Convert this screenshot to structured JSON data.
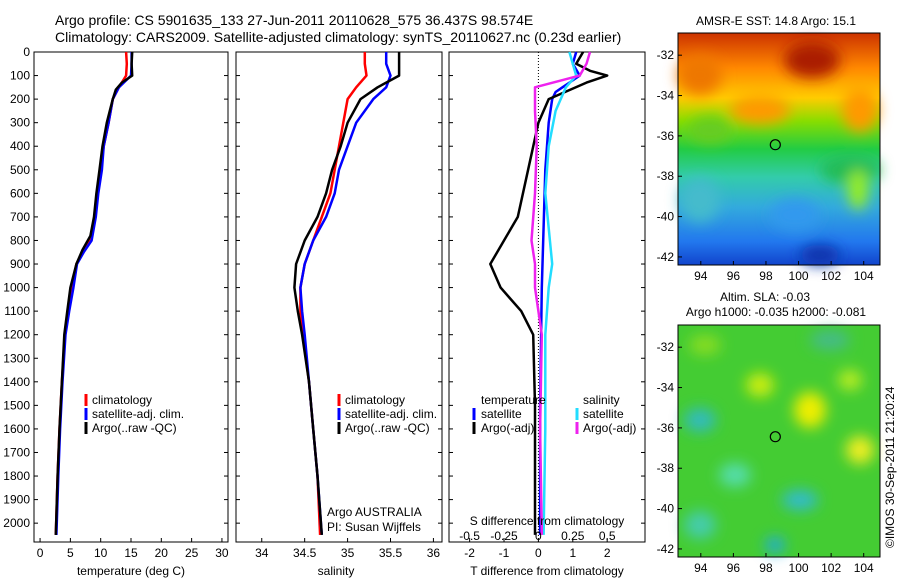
{
  "header": {
    "title": "Argo profile: CS 5901635_133 27-Jun-2011 20110628_575 36.437S 98.574E",
    "subtitle": "Climatology: CARS2009. Satellite-adjusted climatology: synTS_20110627.nc (0.23d earlier)"
  },
  "colors": {
    "red": "#ff0000",
    "blue": "#0000ff",
    "black": "#000000",
    "cyan": "#22ddff",
    "magenta": "#ee22ee"
  },
  "legend": {
    "climatology": "climatology",
    "satellite_adj": "satellite-adj. clim.",
    "argo": "Argo(..raw -QC)"
  },
  "diff_legend": {
    "temperature": "temperature",
    "salinity": "salinity",
    "satellite": "satellite",
    "argo_adj": "Argo(-adj)"
  },
  "float_info": {
    "line1": "Argo AUSTRALIA",
    "line2": "PI: Susan Wijffels"
  },
  "maps": {
    "sst_title": "AMSR-E SST: 14.8 Argo: 15.1",
    "sla_title1": "Altim. SLA: -0.03",
    "sla_title2": "Argo h1000: -0.035 h2000: -0.081",
    "xticks": [
      "94",
      "96",
      "98",
      "100",
      "102",
      "104"
    ],
    "yticks": [
      "-32",
      "-34",
      "-36",
      "-38",
      "-40",
      "-42"
    ],
    "marker_lon": 98.574,
    "marker_lat": -36.437,
    "credit": "©IMOS 30-Sep-2011 21:20:24"
  },
  "chart_data": [
    {
      "type": "line",
      "name": "temperature-panel",
      "xlabel": "temperature (deg C)",
      "ylabel": "",
      "xlim": [
        -1,
        31
      ],
      "ylim": [
        2080,
        0
      ],
      "xticks": [
        0,
        5,
        10,
        15,
        20,
        25,
        30
      ],
      "yticks": [
        0,
        100,
        200,
        300,
        400,
        500,
        600,
        700,
        800,
        900,
        1000,
        1100,
        1200,
        1300,
        1400,
        1500,
        1600,
        1700,
        1800,
        1900,
        2000
      ],
      "series": [
        {
          "name": "climatology",
          "color": "red",
          "points": [
            [
              14.2,
              0
            ],
            [
              14.3,
              50
            ],
            [
              14.2,
              100
            ],
            [
              13,
              150
            ],
            [
              12,
              200
            ],
            [
              11.3,
              300
            ],
            [
              10.5,
              400
            ],
            [
              10,
              500
            ],
            [
              9.4,
              600
            ],
            [
              9,
              700
            ],
            [
              8.3,
              800
            ],
            [
              7,
              850
            ],
            [
              6,
              900
            ],
            [
              5.3,
              1000
            ],
            [
              4.6,
              1100
            ],
            [
              4.1,
              1200
            ],
            [
              3.6,
              1400
            ],
            [
              3.2,
              1600
            ],
            [
              2.9,
              1800
            ],
            [
              2.6,
              2050
            ]
          ]
        },
        {
          "name": "satellite-adj. clim.",
          "color": "blue",
          "points": [
            [
              15.1,
              0
            ],
            [
              15.1,
              50
            ],
            [
              15,
              100
            ],
            [
              13,
              150
            ],
            [
              12,
              200
            ],
            [
              11.3,
              300
            ],
            [
              10.5,
              400
            ],
            [
              10.2,
              500
            ],
            [
              9.6,
              600
            ],
            [
              9.2,
              700
            ],
            [
              8.5,
              800
            ],
            [
              7.2,
              850
            ],
            [
              6.1,
              900
            ],
            [
              5.5,
              1000
            ],
            [
              4.8,
              1100
            ],
            [
              4.2,
              1200
            ],
            [
              3.7,
              1400
            ],
            [
              3.3,
              1600
            ],
            [
              3,
              1800
            ],
            [
              2.7,
              2050
            ]
          ]
        },
        {
          "name": "Argo(..raw -QC)",
          "color": "black",
          "points": [
            [
              15.2,
              0
            ],
            [
              15.1,
              50
            ],
            [
              15.2,
              100
            ],
            [
              13.5,
              130
            ],
            [
              12.5,
              160
            ],
            [
              12,
              200
            ],
            [
              11,
              300
            ],
            [
              10.3,
              400
            ],
            [
              9.8,
              500
            ],
            [
              9.3,
              600
            ],
            [
              8.9,
              700
            ],
            [
              8.3,
              780
            ],
            [
              7,
              840
            ],
            [
              6,
              900
            ],
            [
              5,
              1000
            ],
            [
              4.5,
              1100
            ],
            [
              4,
              1200
            ],
            [
              3.6,
              1400
            ],
            [
              3.2,
              1600
            ],
            [
              2.9,
              1800
            ],
            [
              2.6,
              2050
            ]
          ]
        }
      ]
    },
    {
      "type": "line",
      "name": "salinity-panel",
      "xlabel": "salinity",
      "ylabel": "",
      "xlim": [
        33.7,
        36.1
      ],
      "ylim": [
        2080,
        0
      ],
      "xticks": [
        34,
        34.5,
        35,
        35.5,
        36
      ],
      "series": [
        {
          "name": "climatology",
          "color": "red",
          "points": [
            [
              35.2,
              0
            ],
            [
              35.2,
              50
            ],
            [
              35.22,
              100
            ],
            [
              35.1,
              150
            ],
            [
              35,
              200
            ],
            [
              34.95,
              300
            ],
            [
              34.9,
              400
            ],
            [
              34.85,
              500
            ],
            [
              34.8,
              600
            ],
            [
              34.7,
              700
            ],
            [
              34.6,
              800
            ],
            [
              34.5,
              900
            ],
            [
              34.45,
              1000
            ],
            [
              34.45,
              1100
            ],
            [
              34.48,
              1200
            ],
            [
              34.55,
              1400
            ],
            [
              34.6,
              1600
            ],
            [
              34.65,
              1800
            ],
            [
              34.68,
              2050
            ]
          ]
        },
        {
          "name": "satellite-adj. clim.",
          "color": "blue",
          "points": [
            [
              35.45,
              0
            ],
            [
              35.45,
              50
            ],
            [
              35.5,
              100
            ],
            [
              35.45,
              150
            ],
            [
              35.3,
              200
            ],
            [
              35.1,
              300
            ],
            [
              35,
              400
            ],
            [
              34.9,
              500
            ],
            [
              34.85,
              600
            ],
            [
              34.75,
              700
            ],
            [
              34.6,
              800
            ],
            [
              34.5,
              900
            ],
            [
              34.45,
              1000
            ],
            [
              34.47,
              1100
            ],
            [
              34.5,
              1200
            ],
            [
              34.55,
              1400
            ],
            [
              34.6,
              1600
            ],
            [
              34.65,
              1800
            ],
            [
              34.7,
              2050
            ]
          ]
        },
        {
          "name": "Argo(..raw -QC)",
          "color": "black",
          "points": [
            [
              35.6,
              0
            ],
            [
              35.6,
              50
            ],
            [
              35.6,
              100
            ],
            [
              35.35,
              150
            ],
            [
              35.15,
              200
            ],
            [
              35,
              300
            ],
            [
              34.92,
              400
            ],
            [
              34.82,
              500
            ],
            [
              34.75,
              600
            ],
            [
              34.65,
              700
            ],
            [
              34.5,
              800
            ],
            [
              34.4,
              900
            ],
            [
              34.38,
              1000
            ],
            [
              34.42,
              1100
            ],
            [
              34.47,
              1200
            ],
            [
              34.55,
              1400
            ],
            [
              34.6,
              1600
            ],
            [
              34.65,
              1800
            ],
            [
              34.7,
              2050
            ]
          ]
        }
      ]
    },
    {
      "type": "line",
      "name": "difference-panel",
      "xlabel": "T difference from climatology",
      "xlabel_top": "S difference from climatology",
      "xlim": [
        -2.6,
        3.1
      ],
      "ylim": [
        2080,
        0
      ],
      "xticks": [
        -2,
        -1,
        0,
        1,
        2
      ],
      "xticks_s": [
        "-0.5",
        "-0.25",
        "0",
        "0.25",
        "0.5"
      ],
      "series": [
        {
          "name": "temperature satellite",
          "color": "blue",
          "points": [
            [
              1.1,
              0
            ],
            [
              1.0,
              50
            ],
            [
              1.2,
              100
            ],
            [
              0.9,
              130
            ],
            [
              0.7,
              150
            ],
            [
              0.5,
              170
            ],
            [
              0.4,
              200
            ],
            [
              0.3,
              300
            ],
            [
              0.2,
              500
            ],
            [
              0.1,
              1000
            ],
            [
              0.05,
              1500
            ],
            [
              0.05,
              2050
            ]
          ]
        },
        {
          "name": "temperature Argo(-adj)",
          "color": "black",
          "points": [
            [
              1.3,
              0
            ],
            [
              1.1,
              50
            ],
            [
              1.5,
              80
            ],
            [
              2.0,
              100
            ],
            [
              1.4,
              130
            ],
            [
              0.3,
              200
            ],
            [
              0,
              300
            ],
            [
              -0.3,
              500
            ],
            [
              -0.6,
              700
            ],
            [
              -1,
              800
            ],
            [
              -1.4,
              900
            ],
            [
              -1.1,
              1000
            ],
            [
              -0.5,
              1100
            ],
            [
              -0.15,
              1200
            ],
            [
              -0.1,
              1500
            ],
            [
              -0.1,
              2050
            ]
          ]
        },
        {
          "name": "salinity satellite",
          "color": "cyan",
          "points": [
            [
              0.9,
              0
            ],
            [
              1.0,
              50
            ],
            [
              1.1,
              100
            ],
            [
              0.8,
              150
            ],
            [
              0.5,
              250
            ],
            [
              0.3,
              400
            ],
            [
              0.2,
              600
            ],
            [
              0.4,
              900
            ],
            [
              0.3,
              1000
            ],
            [
              0.2,
              1200
            ],
            [
              0.2,
              1600
            ],
            [
              0.15,
              2050
            ]
          ]
        },
        {
          "name": "salinity Argo(-adj)",
          "color": "magenta",
          "points": [
            [
              1.5,
              0
            ],
            [
              1.4,
              50
            ],
            [
              1.2,
              100
            ],
            [
              -0.1,
              150
            ],
            [
              -0.1,
              250
            ],
            [
              -0.05,
              400
            ],
            [
              -0.1,
              600
            ],
            [
              -0.2,
              800
            ],
            [
              -0.1,
              900
            ],
            [
              -0.1,
              1000
            ],
            [
              0.1,
              1200
            ],
            [
              0.05,
              1600
            ],
            [
              0.1,
              2050
            ]
          ]
        }
      ]
    }
  ]
}
